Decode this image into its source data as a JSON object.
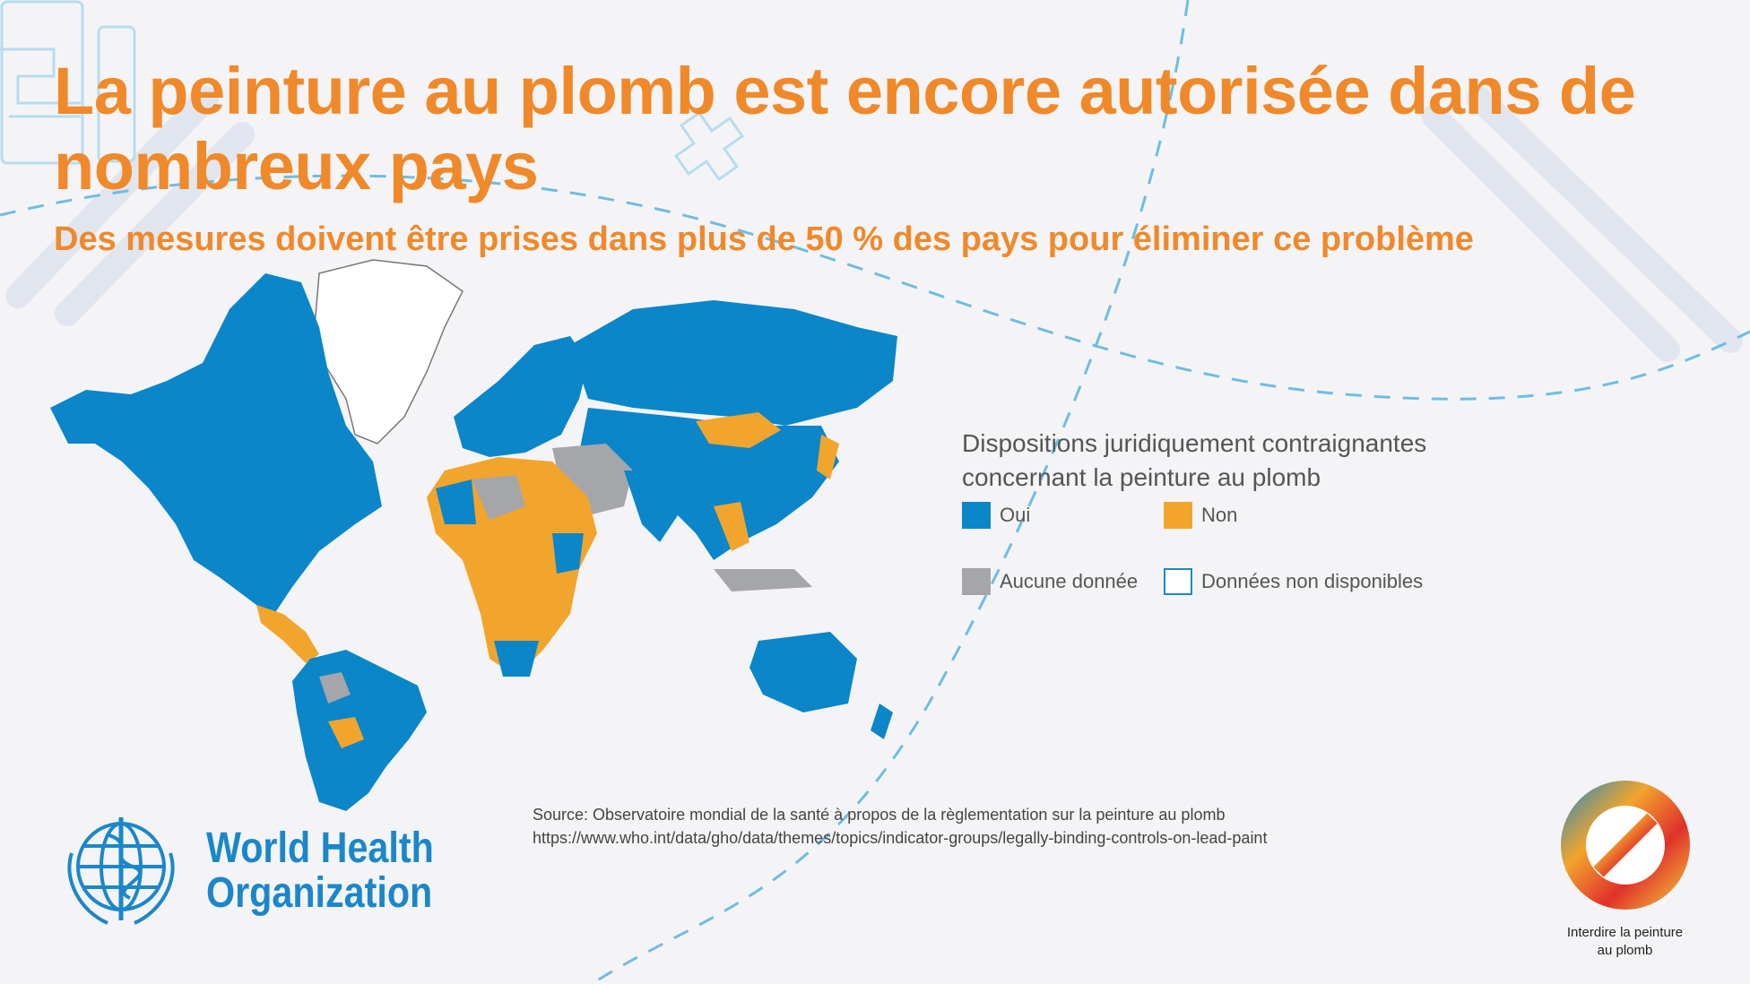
{
  "title": "La peinture au plomb est encore autorisée dans de nombreux pays",
  "subtitle": "Des mesures doivent être prises dans plus de 50 % des pays pour éliminer ce problème",
  "legend": {
    "title_line1": "Dispositions juridiquement contraignantes",
    "title_line2": "concernant la peinture au plomb",
    "items": [
      {
        "label": "Oui",
        "color": "#0a86c9"
      },
      {
        "label": "Non",
        "color": "#f2a52c"
      },
      {
        "label": "Aucune donnée",
        "color": "#a5a6a9"
      },
      {
        "label": "Données non disponibles",
        "color": "#ffffff"
      }
    ]
  },
  "source": {
    "line1": "Source: Observatoire mondial de la santé à propos de la règlementation sur la peinture au plomb",
    "line2": "https://www.who.int/data/gho/data/themes/topics/indicator-groups/legally-binding-controls-on-lead-paint"
  },
  "logo": {
    "line1": "World Health",
    "line2": "Organization"
  },
  "campaign": {
    "line1": "Interdire la peinture",
    "line2": "au plomb"
  },
  "colors": {
    "accent": "#f0892a",
    "oui": "#0a86c9",
    "non": "#f2a52c",
    "no_data": "#a5a6a9",
    "who_blue": "#1b87c9"
  }
}
